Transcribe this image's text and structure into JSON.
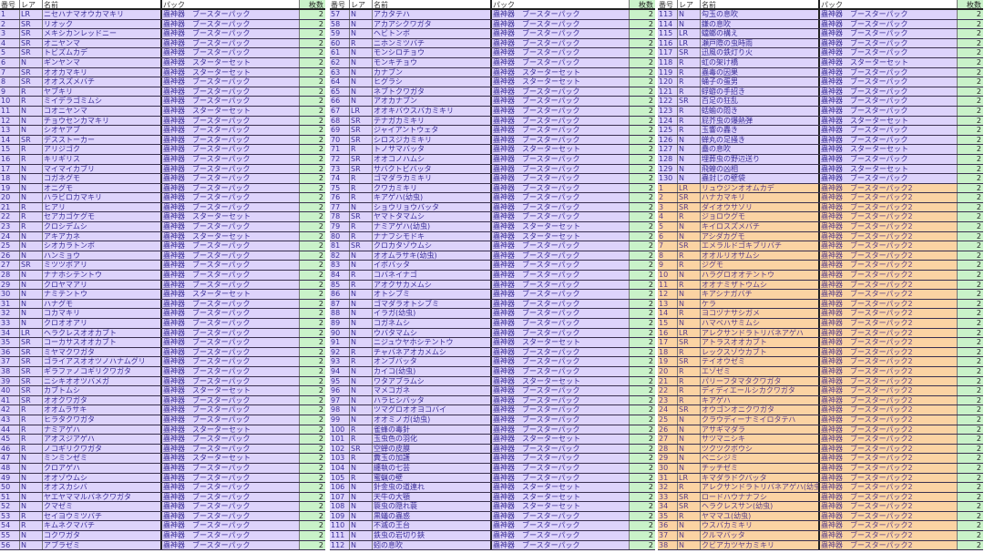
{
  "headers": [
    "番号",
    "レア",
    "名前",
    "パック",
    "枚数"
  ],
  "colors": {
    "pack1_row": "#ddd3fb",
    "pack2_row": "#fbd3a3",
    "count_col": "#c9f2c9",
    "text": "#3b2f9a"
  },
  "tables": [
    {
      "rows": [
        [
          "1",
          "LR",
          "ニセハナマオウカマキリ",
          "蟲神器　ブースターパック",
          "2"
        ],
        [
          "2",
          "SR",
          "リオック",
          "蟲神器　ブースターパック",
          "2"
        ],
        [
          "3",
          "SR",
          "メキシカンレッドニー",
          "蟲神器　ブースターパック",
          "2"
        ],
        [
          "4",
          "SR",
          "オニヤンマ",
          "蟲神器　ブースターパック",
          "2"
        ],
        [
          "5",
          "SR",
          "トビズムカデ",
          "蟲神器　ブースターパック",
          "2"
        ],
        [
          "6",
          "N",
          "ギンヤンマ",
          "蟲神器　スターターセット",
          "2"
        ],
        [
          "7",
          "SR",
          "オオカマキリ",
          "蟲神器　スターターセット",
          "2"
        ],
        [
          "8",
          "SR",
          "オオスズメバチ",
          "蟲神器　ブースターパック",
          "2"
        ],
        [
          "9",
          "R",
          "ヤブキリ",
          "蟲神器　ブースターパック",
          "2"
        ],
        [
          "10",
          "R",
          "ミイデラゴミムシ",
          "蟲神器　ブースターパック",
          "2"
        ],
        [
          "11",
          "N",
          "コオニヤンマ",
          "蟲神器　スターターセット",
          "2"
        ],
        [
          "12",
          "N",
          "チョウセンカマキリ",
          "蟲神器　ブースターパック",
          "2"
        ],
        [
          "13",
          "N",
          "シオヤアブ",
          "蟲神器　ブースターパック",
          "2"
        ],
        [
          "14",
          "SR",
          "デスストーカー",
          "蟲神器　ブースターパック",
          "2"
        ],
        [
          "15",
          "R",
          "アリジゴク",
          "蟲神器　ブースターパック",
          "2"
        ],
        [
          "16",
          "R",
          "キリギリス",
          "蟲神器　ブースターパック",
          "2"
        ],
        [
          "17",
          "N",
          "マイマイカブリ",
          "蟲神器　ブースターパック",
          "2"
        ],
        [
          "18",
          "N",
          "コガネグモ",
          "蟲神器　ブースターパック",
          "2"
        ],
        [
          "19",
          "N",
          "オニグモ",
          "蟲神器　ブースターパック",
          "2"
        ],
        [
          "20",
          "N",
          "ハラビロカマキリ",
          "蟲神器　ブースターパック",
          "2"
        ],
        [
          "21",
          "R",
          "ヒアリ",
          "蟲神器　ブースターパック",
          "2"
        ],
        [
          "22",
          "R",
          "セアカゴケグモ",
          "蟲神器　スターターセット",
          "2"
        ],
        [
          "23",
          "R",
          "クロシデムシ",
          "蟲神器　ブースターパック",
          "2"
        ],
        [
          "24",
          "N",
          "アキアカネ",
          "蟲神器　スターターセット",
          "2"
        ],
        [
          "25",
          "N",
          "シオカラトンボ",
          "蟲神器　ブースターパック",
          "2"
        ],
        [
          "26",
          "N",
          "ハンミョウ",
          "蟲神器　ブースターパック",
          "2"
        ],
        [
          "27",
          "SR",
          "ミツツボアリ",
          "蟲神器　ブースターパック",
          "2"
        ],
        [
          "28",
          "N",
          "ナナホシテントウ",
          "蟲神器　ブースターパック",
          "2"
        ],
        [
          "29",
          "N",
          "クロヤマアリ",
          "蟲神器　ブースターパック",
          "2"
        ],
        [
          "30",
          "N",
          "ナミテントウ",
          "蟲神器　スターターセット",
          "2"
        ],
        [
          "31",
          "N",
          "ハナグモ",
          "蟲神器　ブースターパック",
          "2"
        ],
        [
          "32",
          "N",
          "コカマキリ",
          "蟲神器　ブースターパック",
          "2"
        ],
        [
          "33",
          "N",
          "クロオオアリ",
          "蟲神器　ブースターパック",
          "2"
        ],
        [
          "34",
          "LR",
          "ヘラクレスオオカブト",
          "蟲神器　ブースターパック",
          "2"
        ],
        [
          "35",
          "SR",
          "コーカサスオオカブト",
          "蟲神器　ブースターパック",
          "2"
        ],
        [
          "36",
          "SR",
          "ミヤマクワガタ",
          "蟲神器　ブースターパック",
          "2"
        ],
        [
          "37",
          "SR",
          "ゴライアスオオツノハナムグリ",
          "蟲神器　ブースターパック",
          "2"
        ],
        [
          "38",
          "SR",
          "ギラファノコギリクワガタ",
          "蟲神器　ブースターパック",
          "2"
        ],
        [
          "39",
          "SR",
          "ニシキオオツバメガ",
          "蟲神器　ブースターパック",
          "2"
        ],
        [
          "40",
          "SR",
          "カブトムシ",
          "蟲神器　スターターセット",
          "2"
        ],
        [
          "41",
          "SR",
          "オオクワガタ",
          "蟲神器　ブースターパック",
          "2"
        ],
        [
          "42",
          "R",
          "オオムラサキ",
          "蟲神器　ブースターパック",
          "2"
        ],
        [
          "43",
          "R",
          "ヒラタクワガタ",
          "蟲神器　ブースターパック",
          "2"
        ],
        [
          "44",
          "R",
          "ナミアゲハ",
          "蟲神器　スターターセット",
          "2"
        ],
        [
          "45",
          "R",
          "アオスジアゲハ",
          "蟲神器　ブースターパック",
          "2"
        ],
        [
          "46",
          "R",
          "ノコギリクワガタ",
          "蟲神器　ブースターパック",
          "2"
        ],
        [
          "47",
          "N",
          "ミンミンゼミ",
          "蟲神器　スターターセット",
          "2"
        ],
        [
          "48",
          "N",
          "クロアゲハ",
          "蟲神器　ブースターパック",
          "2"
        ],
        [
          "49",
          "N",
          "オオゾウムシ",
          "蟲神器　ブースターパック",
          "2"
        ],
        [
          "50",
          "N",
          "オオスカシバ",
          "蟲神器　ブースターパック",
          "2"
        ],
        [
          "51",
          "N",
          "ヤエヤママルバネクワガタ",
          "蟲神器　ブースターパック",
          "2"
        ],
        [
          "52",
          "N",
          "クマゼミ",
          "蟲神器　ブースターパック",
          "2"
        ],
        [
          "53",
          "R",
          "セイヨウミツバチ",
          "蟲神器　ブースターパック",
          "2"
        ],
        [
          "54",
          "R",
          "キムネクマバチ",
          "蟲神器　ブースターパック",
          "2"
        ],
        [
          "55",
          "N",
          "コクワガタ",
          "蟲神器　ブースターパック",
          "2"
        ],
        [
          "56",
          "N",
          "アブラゼミ",
          "蟲神器　ブースターパック",
          "2"
        ]
      ]
    },
    {
      "rows": [
        [
          "57",
          "N",
          "アカタテハ",
          "蟲神器　ブースターパック",
          "2"
        ],
        [
          "58",
          "N",
          "アカアシクワガタ",
          "蟲神器　ブースターパック",
          "2"
        ],
        [
          "59",
          "N",
          "ヘビトンボ",
          "蟲神器　ブースターパック",
          "2"
        ],
        [
          "60",
          "R",
          "ニホンミツバチ",
          "蟲神器　ブースターパック",
          "2"
        ],
        [
          "61",
          "N",
          "モンシロチョウ",
          "蟲神器　ブースターパック",
          "2"
        ],
        [
          "62",
          "N",
          "モンキチョウ",
          "蟲神器　ブースターパック",
          "2"
        ],
        [
          "63",
          "N",
          "カナブン",
          "蟲神器　スターターセット",
          "2"
        ],
        [
          "64",
          "N",
          "ヒグラシ",
          "蟲神器　スターターセット",
          "2"
        ],
        [
          "65",
          "N",
          "ネブトクワガタ",
          "蟲神器　ブースターパック",
          "2"
        ],
        [
          "66",
          "N",
          "アオカナブン",
          "蟲神器　ブースターパック",
          "2"
        ],
        [
          "67",
          "LR",
          "オオキバウスバカミキリ",
          "蟲神器　ブースターパック",
          "2"
        ],
        [
          "68",
          "SR",
          "テナガカミキリ",
          "蟲神器　ブースターパック",
          "2"
        ],
        [
          "69",
          "SR",
          "ジャイアントウェタ",
          "蟲神器　ブースターパック",
          "2"
        ],
        [
          "70",
          "SR",
          "シロスジカミキリ",
          "蟲神器　ブースターパック",
          "2"
        ],
        [
          "71",
          "R",
          "トノサマバッタ",
          "蟲神器　スターターセット",
          "2"
        ],
        [
          "72",
          "SR",
          "オオコノハムシ",
          "蟲神器　ブースターパック",
          "2"
        ],
        [
          "73",
          "SR",
          "サバクトビバッタ",
          "蟲神器　ブースターパック",
          "2"
        ],
        [
          "74",
          "R",
          "ゴマダラカミキリ",
          "蟲神器　ブースターパック",
          "2"
        ],
        [
          "75",
          "R",
          "クワカミキリ",
          "蟲神器　ブースターパック",
          "2"
        ],
        [
          "76",
          "R",
          "キアゲハ(幼虫)",
          "蟲神器　ブースターパック",
          "2"
        ],
        [
          "77",
          "N",
          "ショウリョウバッタ",
          "蟲神器　ブースターパック",
          "2"
        ],
        [
          "78",
          "SR",
          "ヤマトタマムシ",
          "蟲神器　ブースターパック",
          "2"
        ],
        [
          "79",
          "R",
          "ナミアゲハ(幼虫)",
          "蟲神器　スターターセット",
          "2"
        ],
        [
          "80",
          "R",
          "ナナフシモドキ",
          "蟲神器　スターターセット",
          "2"
        ],
        [
          "81",
          "SR",
          "クロカタゾウムシ",
          "蟲神器　ブースターパック",
          "2"
        ],
        [
          "82",
          "N",
          "オオムラサキ(幼虫)",
          "蟲神器　ブースターパック",
          "2"
        ],
        [
          "83",
          "N",
          "イボバッタ",
          "蟲神器　ブースターパック",
          "2"
        ],
        [
          "84",
          "R",
          "コバネイナゴ",
          "蟲神器　ブースターパック",
          "2"
        ],
        [
          "85",
          "R",
          "アオクサカメムシ",
          "蟲神器　ブースターパック",
          "2"
        ],
        [
          "86",
          "N",
          "オトシブミ",
          "蟲神器　ブースターパック",
          "2"
        ],
        [
          "87",
          "N",
          "ゴマダラオトシブミ",
          "蟲神器　ブースターパック",
          "2"
        ],
        [
          "88",
          "N",
          "イラガ(幼虫)",
          "蟲神器　ブースターパック",
          "2"
        ],
        [
          "89",
          "N",
          "コガネムシ",
          "蟲神器　ブースターパック",
          "2"
        ],
        [
          "90",
          "N",
          "ウバタマムシ",
          "蟲神器　ブースターパック",
          "2"
        ],
        [
          "91",
          "N",
          "ニジュウヤホシテントウ",
          "蟲神器　スターターセット",
          "2"
        ],
        [
          "92",
          "R",
          "チャバネアオカメムシ",
          "蟲神器　ブースターパック",
          "2"
        ],
        [
          "93",
          "R",
          "オンブバッタ",
          "蟲神器　ブースターパック",
          "2"
        ],
        [
          "94",
          "N",
          "カイコ(幼虫)",
          "蟲神器　ブースターパック",
          "2"
        ],
        [
          "95",
          "N",
          "ワタアブラムシ",
          "蟲神器　スターターセット",
          "2"
        ],
        [
          "96",
          "N",
          "マメコガネ",
          "蟲神器　ブースターパック",
          "2"
        ],
        [
          "97",
          "N",
          "ハラヒシバッタ",
          "蟲神器　ブースターパック",
          "2"
        ],
        [
          "98",
          "N",
          "ツマグロオオヨコバイ",
          "蟲神器　ブースターパック",
          "2"
        ],
        [
          "99",
          "N",
          "オオミノガ(幼虫)",
          "蟲神器　ブースターパック",
          "2"
        ],
        [
          "100",
          "R",
          "雀蜂の毒針",
          "蟲神器　ブースターパック",
          "2"
        ],
        [
          "101",
          "R",
          "玉虫色の羽化",
          "蟲神器　スターターセット",
          "2"
        ],
        [
          "102",
          "SR",
          "空蝉の皮膜",
          "蟲神器　ブースターパック",
          "2"
        ],
        [
          "103",
          "R",
          "糞玉の加護",
          "蟲神器　ブースターパック",
          "2"
        ],
        [
          "104",
          "N",
          "纏執の七芸",
          "蟲神器　ブースターパック",
          "2"
        ],
        [
          "105",
          "R",
          "蜜蝋の壁",
          "蟲神器　ブースターパック",
          "2"
        ],
        [
          "106",
          "N",
          "針金虫の道連れ",
          "蟲神器　スターターセット",
          "2"
        ],
        [
          "107",
          "N",
          "天牛の大顎",
          "蟲神器　スターターセット",
          "2"
        ],
        [
          "108",
          "N",
          "簑虫の隠れ蓑",
          "蟲神器　スターターセット",
          "2"
        ],
        [
          "109",
          "N",
          "黒蟻の蟲惑",
          "蟲神器　ブースターパック",
          "2"
        ],
        [
          "110",
          "N",
          "不滅の王台",
          "蟲神器　ブースターパック",
          "2"
        ],
        [
          "111",
          "N",
          "鉄虫の岩切り鋏",
          "蟲神器　ブースターパック",
          "2"
        ],
        [
          "112",
          "N",
          "蚓の息吹",
          "蟲神器　ブースターパック",
          "2"
        ]
      ]
    },
    {
      "rows": [
        [
          "113",
          "N",
          "勾玉の息吹",
          "蟲神器　ブースターパック",
          "2"
        ],
        [
          "114",
          "N",
          "鎌の息吹",
          "蟲神器　ブースターパック",
          "2"
        ],
        [
          "115",
          "LR",
          "蟷螂の構え",
          "蟲神器　ブースターパック",
          "2"
        ],
        [
          "116",
          "LR",
          "瀬戸際の虫時雨",
          "蟲神器　ブースターパック",
          "2"
        ],
        [
          "117",
          "SR",
          "迅風の鉄灯り火",
          "蟲神器　ブースターパック",
          "2"
        ],
        [
          "118",
          "R",
          "虹の架け橋",
          "蟲神器　スターターセット",
          "2"
        ],
        [
          "119",
          "R",
          "蟲毒の因果",
          "蟲神器　ブースターパック",
          "2"
        ],
        [
          "120",
          "R",
          "蛹子の蛋男",
          "蟲神器　ブースターパック",
          "2"
        ],
        [
          "121",
          "R",
          "蜉蝣の手招き",
          "蟲神器　ブースターパック",
          "2"
        ],
        [
          "122",
          "SR",
          "百足の狂乱",
          "蟲神器　ブースターパック",
          "2"
        ],
        [
          "123",
          "R",
          "蛞蝓の悶き",
          "蟲神器　ブースターパック",
          "2"
        ],
        [
          "124",
          "R",
          "屁芥虫の爆熱弾",
          "蟲神器　スターターセット",
          "2"
        ],
        [
          "125",
          "R",
          "玉響の轟き",
          "蟲神器　ブースターパック",
          "2"
        ],
        [
          "126",
          "N",
          "蝉丸の足掻き",
          "蟲神器　ブースターパック",
          "2"
        ],
        [
          "127",
          "N",
          "蠱の息吹",
          "蟲神器　スターターセット",
          "2"
        ],
        [
          "128",
          "N",
          "埋葬虫の野辺送り",
          "蟲神器　ブースターパック",
          "2"
        ],
        [
          "129",
          "N",
          "飛蝗の凶相",
          "蟲神器　スターターセット",
          "2"
        ],
        [
          "130",
          "N",
          "蟲封じの壁袋",
          "蟲神器　ブースターパック",
          "2"
        ],
        [
          "1",
          "LR",
          "リュウジンオオムカデ",
          "蟲神器　ブースターパック2",
          "2"
        ],
        [
          "2",
          "SR",
          "ハナカマキリ",
          "蟲神器　ブースターパック2",
          "2"
        ],
        [
          "3",
          "SR",
          "ダイオウサソリ",
          "蟲神器　ブースターパック2",
          "2"
        ],
        [
          "4",
          "R",
          "ジョロウグモ",
          "蟲神器　ブースターパック2",
          "2"
        ],
        [
          "5",
          "N",
          "キイロスズメバチ",
          "蟲神器　ブースターパック2",
          "2"
        ],
        [
          "6",
          "N",
          "アシダカグモ",
          "蟲神器　ブースターパック2",
          "2"
        ],
        [
          "7",
          "SR",
          "エメラルドゴキブリバチ",
          "蟲神器　ブースターパック2",
          "2"
        ],
        [
          "8",
          "R",
          "オオルリオサムシ",
          "蟲神器　ブースターパック2",
          "2"
        ],
        [
          "9",
          "R",
          "ジグモ",
          "蟲神器　ブースターパック2",
          "2"
        ],
        [
          "10",
          "N",
          "ハラグロオオテントウ",
          "蟲神器　ブースターパック2",
          "2"
        ],
        [
          "11",
          "R",
          "オオナミザトウムシ",
          "蟲神器　ブースターパック2",
          "2"
        ],
        [
          "12",
          "N",
          "キアシナガバチ",
          "蟲神器　ブースターパック2",
          "2"
        ],
        [
          "13",
          "N",
          "ケラ",
          "蟲神器　ブースターパック2",
          "2"
        ],
        [
          "14",
          "R",
          "ヨコヅナサシガメ",
          "蟲神器　ブースターパック2",
          "2"
        ],
        [
          "15",
          "N",
          "ハマベハサミムシ",
          "蟲神器　ブースターパック2",
          "2"
        ],
        [
          "16",
          "LR",
          "アレクサンドラトリバネアゲハ",
          "蟲神器　ブースターパック2",
          "2"
        ],
        [
          "17",
          "SR",
          "アトラスオオカブト",
          "蟲神器　ブースターパック2",
          "2"
        ],
        [
          "18",
          "R",
          "レックスゾウカブト",
          "蟲神器　ブースターパック2",
          "2"
        ],
        [
          "19",
          "SR",
          "テイオウゼミ",
          "蟲神器　ブースターパック2",
          "2"
        ],
        [
          "20",
          "R",
          "エゾゼミ",
          "蟲神器　ブースターパック2",
          "2"
        ],
        [
          "21",
          "R",
          "パリーフタマタクワガタ",
          "蟲神器　ブースターパック2",
          "2"
        ],
        [
          "22",
          "R",
          "ディディエールシカクワガタ",
          "蟲神器　ブースターパック2",
          "2"
        ],
        [
          "23",
          "R",
          "キアゲハ",
          "蟲神器　ブースターパック2",
          "2"
        ],
        [
          "24",
          "SR",
          "オウゴンオニクワガタ",
          "蟲神器　ブースターパック2",
          "2"
        ],
        [
          "25",
          "N",
          "クラウディーナミイロタテハ",
          "蟲神器　ブースターパック2",
          "2"
        ],
        [
          "26",
          "N",
          "アサギマダラ",
          "蟲神器　ブースターパック2",
          "2"
        ],
        [
          "27",
          "N",
          "サツマニシキ",
          "蟲神器　ブースターパック2",
          "2"
        ],
        [
          "28",
          "N",
          "ツクツクボウシ",
          "蟲神器　ブースターパック2",
          "2"
        ],
        [
          "29",
          "N",
          "ベニシジミ",
          "蟲神器　ブースターパック2",
          "2"
        ],
        [
          "30",
          "N",
          "チッチゼミ",
          "蟲神器　ブースターパック2",
          "2"
        ],
        [
          "31",
          "LR",
          "キマダラドクバッタ",
          "蟲神器　ブースターパック2",
          "2"
        ],
        [
          "32",
          "R",
          "アレクサンドラトリバネアゲハ(幼虫)",
          "蟲神器　ブースターパック2",
          "2"
        ],
        [
          "33",
          "SR",
          "ロードハウナナフシ",
          "蟲神器　ブースターパック2",
          "2"
        ],
        [
          "34",
          "SR",
          "ヘラクレスサン(幼虫)",
          "蟲神器　ブースターパック2",
          "2"
        ],
        [
          "35",
          "R",
          "ヤママユ(幼虫)",
          "蟲神器　ブースターパック2",
          "2"
        ],
        [
          "36",
          "N",
          "ウスバカミキリ",
          "蟲神器　ブースターパック2",
          "2"
        ],
        [
          "37",
          "N",
          "クルマバッタ",
          "蟲神器　ブースターパック2",
          "2"
        ],
        [
          "38",
          "N",
          "クビアカツヤカミキリ",
          "蟲神器　ブースターパック2",
          "2"
        ]
      ]
    }
  ]
}
